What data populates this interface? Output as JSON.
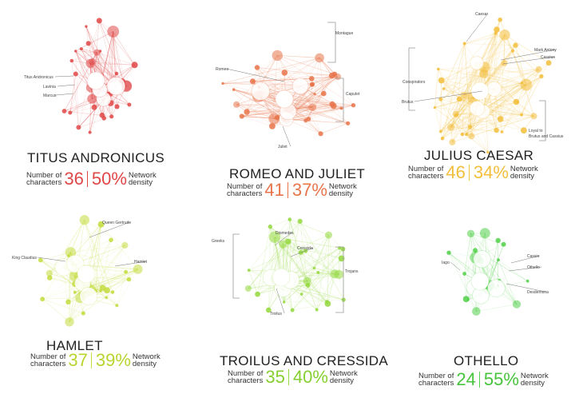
{
  "stat_labels": {
    "characters_line1": "Number of",
    "characters_line2": "characters",
    "density_line1": "Network",
    "density_line2": "density"
  },
  "plays": [
    {
      "key": "titus",
      "title": "TITUS ANDRONICUS",
      "characters": "36",
      "density": "50%",
      "color": "#e04848",
      "labels": [
        "Titus Andronicus",
        "Lavinia",
        "Marcus"
      ],
      "groups": []
    },
    {
      "key": "romeo",
      "title": "ROMEO AND JULIET",
      "characters": "41",
      "density": "37%",
      "color": "#e8744a",
      "labels": [
        "Romeo",
        "Juliet"
      ],
      "groups": [
        "Montague",
        "Capulet"
      ]
    },
    {
      "key": "caesar",
      "title": "JULIUS CAESAR",
      "characters": "46",
      "density": "34%",
      "color": "#f2be3c",
      "labels": [
        "Caesar",
        "Mark Antony",
        "Cassius",
        "Brutus"
      ],
      "groups": [
        "Conspirators",
        "Loyal to",
        "Brutus and Cassius"
      ]
    },
    {
      "key": "hamlet",
      "title": "HAMLET",
      "characters": "37",
      "density": "39%",
      "color": "#c4dc3e",
      "labels": [
        "Queen Gertrude",
        "King Claudius",
        "Hamlet"
      ],
      "groups": []
    },
    {
      "key": "troilus",
      "title": "TROILUS AND CRESSIDA",
      "characters": "35",
      "density": "40%",
      "color": "#94d83e",
      "labels": [
        "Diomedes",
        "Cressida",
        "Troilus"
      ],
      "groups": [
        "Greeks",
        "Trojans"
      ]
    },
    {
      "key": "othello",
      "title": "OTHELLO",
      "characters": "24",
      "density": "55%",
      "color": "#52d04a",
      "labels": [
        "Iago",
        "Cassio",
        "Othello",
        "Desdemona"
      ],
      "groups": []
    }
  ]
}
